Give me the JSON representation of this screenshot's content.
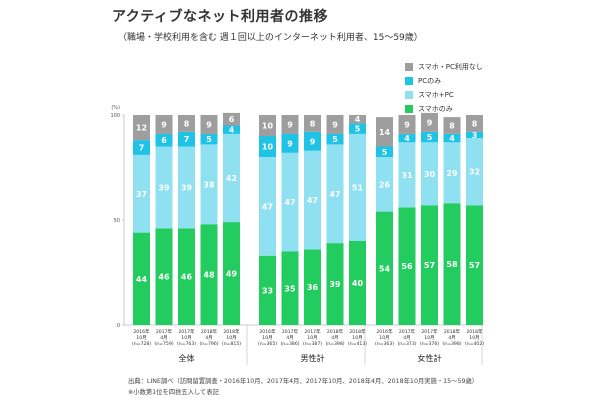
{
  "title": "アクティブなネット利用者の推移",
  "subtitle": "（職場・学校利用を含む 週１回以上のインターネット利用者、15～59歳）",
  "source": "出典：LINE調べ（訪問留置調査・2016年10月、2017年4月、2017年10月、2018年4月、2018年10月実施・15～59歳）",
  "note": "※小数第1位を四捨五入して表記",
  "colors": {
    "none": "#9e9e9e",
    "pc_only": "#1ec3e6",
    "smartphone_pc": "#8fe0f0",
    "smartphone_only": "#22cc5e"
  },
  "chart_data": {
    "type": "bar",
    "stacked": true,
    "ylabel": "(%)",
    "ylim": [
      0,
      100
    ],
    "yticks": [
      "0",
      "50",
      "100"
    ],
    "grid": false,
    "legend_position": "top-right",
    "groups": [
      {
        "name": "全体",
        "bars": [
          {
            "date": "2016年10月",
            "n": "(n=728)"
          },
          {
            "date": "2017年4月",
            "n": "(n=759)"
          },
          {
            "date": "2017年10月",
            "n": "(n=763)"
          },
          {
            "date": "2018年4月",
            "n": "(n=796)"
          },
          {
            "date": "2018年10月",
            "n": "(n=815)"
          }
        ]
      },
      {
        "name": "男性計",
        "bars": [
          {
            "date": "2016年10月",
            "n": "(n=365)"
          },
          {
            "date": "2017年4月",
            "n": "(n=386)"
          },
          {
            "date": "2017年10月",
            "n": "(n=387)"
          },
          {
            "date": "2018年4月",
            "n": "(n=398)"
          },
          {
            "date": "2018年10月",
            "n": "(n=413)"
          }
        ]
      },
      {
        "name": "女性計",
        "bars": [
          {
            "date": "2016年10月",
            "n": "(n=363)"
          },
          {
            "date": "2017年4月",
            "n": "(n=373)"
          },
          {
            "date": "2017年10月",
            "n": "(n=376)"
          },
          {
            "date": "2018年4月",
            "n": "(n=398)"
          },
          {
            "date": "2018年10月",
            "n": "(n=402)"
          }
        ]
      }
    ],
    "series": [
      {
        "key": "smartphone_only",
        "name": "スマホのみ",
        "values": [
          44,
          46,
          46,
          48,
          49,
          33,
          35,
          36,
          39,
          40,
          54,
          56,
          57,
          58,
          57
        ]
      },
      {
        "key": "smartphone_pc",
        "name": "スマホ+PC",
        "values": [
          37,
          39,
          39,
          38,
          42,
          47,
          47,
          47,
          47,
          51,
          26,
          31,
          30,
          29,
          32
        ]
      },
      {
        "key": "pc_only",
        "name": "PCのみ",
        "values": [
          7,
          6,
          7,
          5,
          4,
          10,
          9,
          9,
          5,
          5,
          5,
          4,
          5,
          4,
          3
        ]
      },
      {
        "key": "none",
        "name": "スマホ・PC利用なし",
        "values": [
          12,
          9,
          8,
          9,
          6,
          10,
          9,
          8,
          9,
          4,
          14,
          9,
          9,
          8,
          8
        ]
      }
    ],
    "legend_order": [
      "none",
      "pc_only",
      "smartphone_pc",
      "smartphone_only"
    ]
  }
}
